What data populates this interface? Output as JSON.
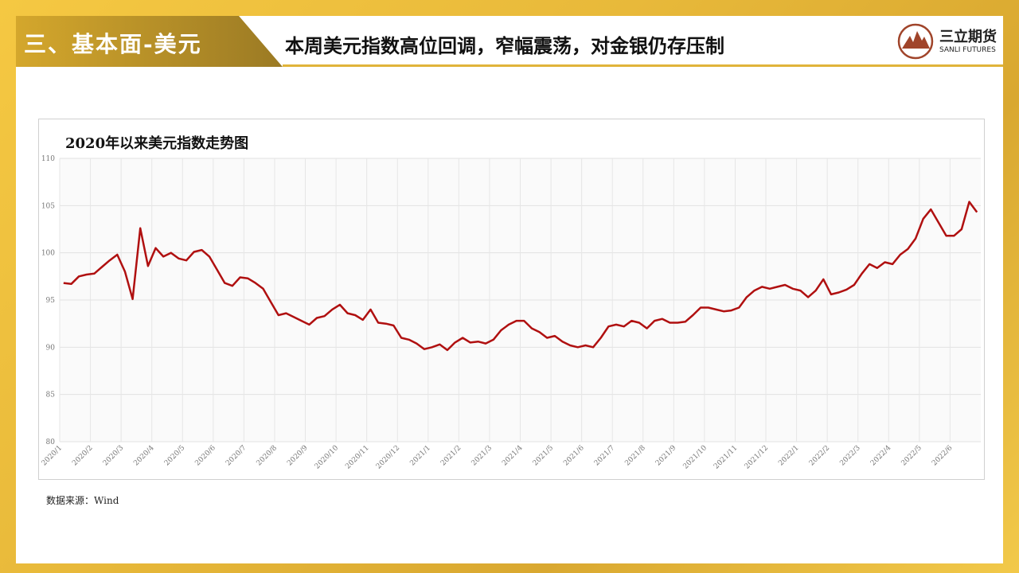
{
  "header": {
    "section": "三、基本面-美元",
    "title": "本周美元指数高位回调，窄幅震荡，对金银仍存压制",
    "logo_cn": "三立期货",
    "logo_en": "SANLI FUTURES"
  },
  "chart_data": {
    "type": "line",
    "title": "2020年以来美元指数走势图",
    "categories": [
      "2020/1",
      null,
      null,
      null,
      "2020/2",
      null,
      null,
      null,
      "2020/3",
      null,
      null,
      null,
      "2020/4",
      null,
      null,
      null,
      "2020/5",
      null,
      null,
      null,
      "2020/6",
      null,
      null,
      null,
      "2020/7",
      null,
      null,
      null,
      "2020/8",
      null,
      null,
      null,
      "2020/9",
      null,
      null,
      null,
      "2020/10",
      null,
      null,
      null,
      "2020/11",
      null,
      null,
      null,
      "2020/12",
      null,
      null,
      null,
      "2021/1",
      null,
      null,
      null,
      "2021/2",
      null,
      null,
      null,
      "2021/3",
      null,
      null,
      null,
      "2021/4",
      null,
      null,
      null,
      "2021/5",
      null,
      null,
      null,
      "2021/6",
      null,
      null,
      null,
      "2021/7",
      null,
      null,
      null,
      "2021/8",
      null,
      null,
      null,
      "2021/9",
      null,
      null,
      null,
      "2021/10",
      null,
      null,
      null,
      "2021/11",
      null,
      null,
      null,
      "2021/12",
      null,
      null,
      null,
      "2022/1",
      null,
      null,
      null,
      "2022/2",
      null,
      null,
      null,
      "2022/3",
      null,
      null,
      null,
      "2022/4",
      null,
      null,
      null,
      "2022/5",
      null,
      null,
      null,
      "2022/6",
      null,
      null,
      null
    ],
    "series": [
      {
        "name": "美元指数",
        "color": "#b01010",
        "values": [
          96.8,
          96.7,
          97.5,
          97.7,
          97.8,
          98.5,
          99.2,
          99.8,
          98.0,
          95.1,
          102.6,
          98.6,
          100.5,
          99.6,
          100.0,
          99.4,
          99.2,
          100.1,
          100.3,
          99.6,
          98.2,
          96.8,
          96.5,
          97.4,
          97.3,
          96.8,
          96.2,
          94.8,
          93.4,
          93.6,
          93.2,
          92.8,
          92.4,
          93.1,
          93.3,
          94.0,
          94.5,
          93.6,
          93.4,
          92.9,
          94.0,
          92.6,
          92.5,
          92.3,
          91.0,
          90.8,
          90.4,
          89.8,
          90.0,
          90.3,
          89.7,
          90.5,
          91.0,
          90.5,
          90.6,
          90.4,
          90.8,
          91.8,
          92.4,
          92.8,
          92.8,
          92.0,
          91.6,
          91.0,
          91.2,
          90.6,
          90.2,
          90.0,
          90.2,
          90.0,
          91.0,
          92.2,
          92.4,
          92.2,
          92.8,
          92.6,
          92.0,
          92.8,
          93.0,
          92.6,
          92.6,
          92.7,
          93.4,
          94.2,
          94.2,
          94.0,
          93.8,
          93.9,
          94.2,
          95.3,
          96.0,
          96.4,
          96.2,
          96.4,
          96.6,
          96.2,
          96.0,
          95.3,
          96.0,
          97.2,
          95.6,
          95.8,
          96.1,
          96.6,
          97.8,
          98.8,
          98.4,
          99.0,
          98.8,
          99.8,
          100.4,
          101.5,
          103.6,
          104.6,
          103.2,
          101.8,
          101.8,
          102.5,
          105.4,
          104.3
        ]
      }
    ],
    "ylim": [
      80,
      110
    ],
    "yticks": [
      80,
      85,
      90,
      95,
      100,
      105,
      110
    ],
    "grid": true
  },
  "source": "数据来源：Wind"
}
